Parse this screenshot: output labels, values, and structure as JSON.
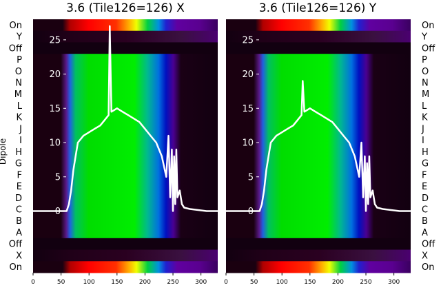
{
  "chart_data": [
    {
      "type": "heatmap",
      "title": "3.6 (Tile126=126) X",
      "ylabel": "Dipole",
      "row_labels": [
        "On",
        "Y",
        "Off",
        "P",
        "O",
        "N",
        "M",
        "L",
        "K",
        "J",
        "I",
        "H",
        "G",
        "F",
        "E",
        "D",
        "C",
        "B",
        "A",
        "Off",
        "X",
        "On"
      ],
      "x_ticks": [
        0,
        50,
        100,
        150,
        200,
        250,
        300
      ],
      "xlim": [
        0,
        330
      ],
      "overlay_yticks": [
        0,
        5,
        10,
        15,
        20,
        25
      ],
      "overlay_ylim": [
        -9,
        28
      ],
      "overlay_line": {
        "x": [
          0,
          60,
          64,
          68,
          72,
          76,
          80,
          90,
          100,
          110,
          120,
          130,
          135,
          137,
          140,
          150,
          160,
          170,
          180,
          190,
          200,
          210,
          220,
          230,
          238,
          242,
          245,
          248,
          250,
          252,
          254,
          256,
          258,
          262,
          266,
          270,
          280,
          290,
          300,
          310,
          320,
          330
        ],
        "y": [
          0,
          0,
          1,
          3,
          6,
          8,
          10,
          11,
          11.5,
          12,
          12.5,
          13.5,
          14,
          27,
          14.5,
          15,
          14.5,
          14,
          13.5,
          13,
          12,
          11,
          10,
          8,
          5,
          11,
          2,
          9,
          0,
          8,
          1,
          9,
          2,
          3,
          1,
          0.5,
          0.3,
          0.2,
          0.1,
          0,
          0,
          0
        ]
      }
    },
    {
      "type": "heatmap",
      "title": "3.6 (Tile126=126) Y",
      "row_labels": [
        "On",
        "Y",
        "Off",
        "P",
        "O",
        "N",
        "M",
        "L",
        "K",
        "J",
        "I",
        "H",
        "G",
        "F",
        "E",
        "D",
        "C",
        "B",
        "A",
        "Off",
        "X",
        "On"
      ],
      "x_ticks": [
        0,
        50,
        100,
        150,
        200,
        250,
        300
      ],
      "xlim": [
        0,
        330
      ],
      "overlay_yticks": [
        0,
        5,
        10,
        15,
        20,
        25
      ],
      "overlay_ylim": [
        -9,
        28
      ],
      "overlay_line": {
        "x": [
          0,
          60,
          64,
          68,
          72,
          76,
          80,
          90,
          100,
          110,
          120,
          130,
          135,
          137,
          140,
          150,
          160,
          170,
          180,
          190,
          200,
          210,
          220,
          230,
          238,
          242,
          245,
          248,
          250,
          252,
          254,
          256,
          258,
          262,
          266,
          270,
          280,
          290,
          300,
          310,
          320,
          330
        ],
        "y": [
          0,
          0,
          1,
          3,
          6,
          8,
          10,
          11,
          11.5,
          12,
          12.5,
          13.5,
          14,
          19,
          14.5,
          15,
          14.5,
          14,
          13.5,
          13,
          12,
          11,
          10,
          8,
          5,
          10,
          2,
          8,
          0,
          7,
          1,
          8,
          2,
          3,
          1,
          0.5,
          0.3,
          0.2,
          0.1,
          0,
          0,
          0
        ]
      }
    }
  ]
}
